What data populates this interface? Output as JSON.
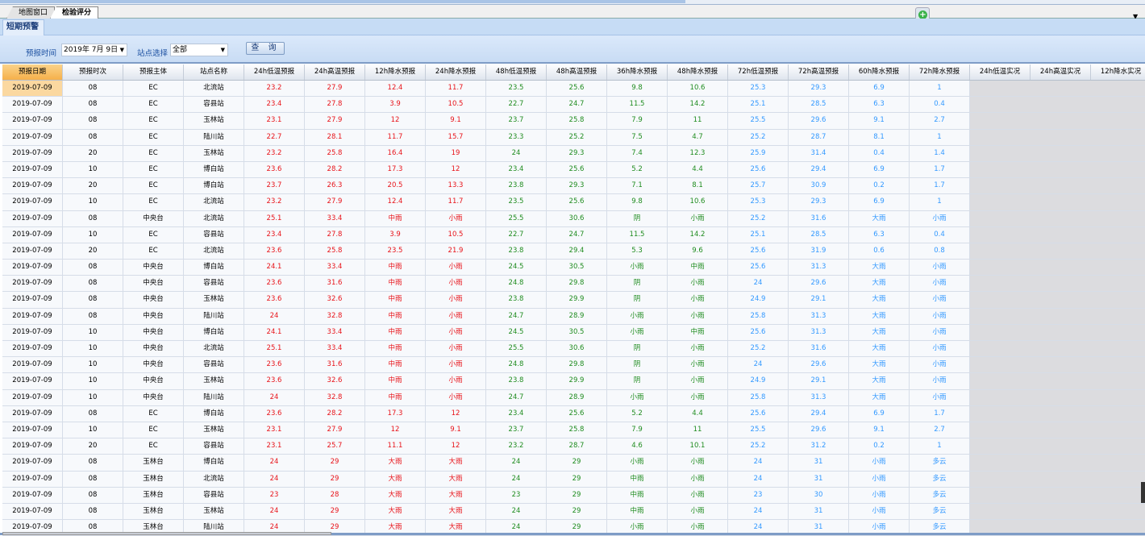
{
  "window_tabs": [
    {
      "label": "地图窗口",
      "active": false
    },
    {
      "label": "检验评分",
      "active": true
    }
  ],
  "add_icon": "plus-circle-icon",
  "sub_tab": "短期预警",
  "filter": {
    "time_label": "预报时间",
    "time_value": "2019年 7月 9日",
    "station_label": "站点选择",
    "station_value": "全部",
    "query_label": "查 询"
  },
  "colors": {
    "group1": "#e8141a",
    "group2": "#1f8c1f",
    "group3": "#3399ff",
    "selected_header": "#f5b04a"
  },
  "columns": [
    "预报日期",
    "预报时次",
    "预报主体",
    "站点名称",
    "24h低温预报",
    "24h高温预报",
    "12h降水预报",
    "24h降水预报",
    "48h低温预报",
    "48h高温预报",
    "36h降水预报",
    "48h降水预报",
    "72h低温预报",
    "72h高温预报",
    "60h降水预报",
    "72h降水预报",
    "24h低温实况",
    "24h高温实况",
    "12h降水实况"
  ],
  "rows": [
    [
      "2019-07-09",
      "08",
      "EC",
      "北流站",
      "23.2",
      "27.9",
      "12.4",
      "11.7",
      "23.5",
      "25.6",
      "9.8",
      "10.6",
      "25.3",
      "29.3",
      "6.9",
      "1",
      "",
      "",
      ""
    ],
    [
      "2019-07-09",
      "08",
      "EC",
      "容县站",
      "23.4",
      "27.8",
      "3.9",
      "10.5",
      "22.7",
      "24.7",
      "11.5",
      "14.2",
      "25.1",
      "28.5",
      "6.3",
      "0.4",
      "",
      "",
      ""
    ],
    [
      "2019-07-09",
      "08",
      "EC",
      "玉林站",
      "23.1",
      "27.9",
      "12",
      "9.1",
      "23.7",
      "25.8",
      "7.9",
      "11",
      "25.5",
      "29.6",
      "9.1",
      "2.7",
      "",
      "",
      ""
    ],
    [
      "2019-07-09",
      "08",
      "EC",
      "陆川站",
      "22.7",
      "28.1",
      "11.7",
      "15.7",
      "23.3",
      "25.2",
      "7.5",
      "4.7",
      "25.2",
      "28.7",
      "8.1",
      "1",
      "",
      "",
      ""
    ],
    [
      "2019-07-09",
      "20",
      "EC",
      "玉林站",
      "23.2",
      "25.8",
      "16.4",
      "19",
      "24",
      "29.3",
      "7.4",
      "12.3",
      "25.9",
      "31.4",
      "0.4",
      "1.4",
      "",
      "",
      ""
    ],
    [
      "2019-07-09",
      "10",
      "EC",
      "博白站",
      "23.6",
      "28.2",
      "17.3",
      "12",
      "23.4",
      "25.6",
      "5.2",
      "4.4",
      "25.6",
      "29.4",
      "6.9",
      "1.7",
      "",
      "",
      ""
    ],
    [
      "2019-07-09",
      "20",
      "EC",
      "博白站",
      "23.7",
      "26.3",
      "20.5",
      "13.3",
      "23.8",
      "29.3",
      "7.1",
      "8.1",
      "25.7",
      "30.9",
      "0.2",
      "1.7",
      "",
      "",
      ""
    ],
    [
      "2019-07-09",
      "10",
      "EC",
      "北流站",
      "23.2",
      "27.9",
      "12.4",
      "11.7",
      "23.5",
      "25.6",
      "9.8",
      "10.6",
      "25.3",
      "29.3",
      "6.9",
      "1",
      "",
      "",
      ""
    ],
    [
      "2019-07-09",
      "08",
      "中央台",
      "北流站",
      "25.1",
      "33.4",
      "中雨",
      "小雨",
      "25.5",
      "30.6",
      "阴",
      "小雨",
      "25.2",
      "31.6",
      "大雨",
      "小雨",
      "",
      "",
      ""
    ],
    [
      "2019-07-09",
      "10",
      "EC",
      "容县站",
      "23.4",
      "27.8",
      "3.9",
      "10.5",
      "22.7",
      "24.7",
      "11.5",
      "14.2",
      "25.1",
      "28.5",
      "6.3",
      "0.4",
      "",
      "",
      ""
    ],
    [
      "2019-07-09",
      "20",
      "EC",
      "北流站",
      "23.6",
      "25.8",
      "23.5",
      "21.9",
      "23.8",
      "29.4",
      "5.3",
      "9.6",
      "25.6",
      "31.9",
      "0.6",
      "0.8",
      "",
      "",
      ""
    ],
    [
      "2019-07-09",
      "08",
      "中央台",
      "博白站",
      "24.1",
      "33.4",
      "中雨",
      "小雨",
      "24.5",
      "30.5",
      "小雨",
      "中雨",
      "25.6",
      "31.3",
      "大雨",
      "小雨",
      "",
      "",
      ""
    ],
    [
      "2019-07-09",
      "08",
      "中央台",
      "容县站",
      "23.6",
      "31.6",
      "中雨",
      "小雨",
      "24.8",
      "29.8",
      "阴",
      "小雨",
      "24",
      "29.6",
      "大雨",
      "小雨",
      "",
      "",
      ""
    ],
    [
      "2019-07-09",
      "08",
      "中央台",
      "玉林站",
      "23.6",
      "32.6",
      "中雨",
      "小雨",
      "23.8",
      "29.9",
      "阴",
      "小雨",
      "24.9",
      "29.1",
      "大雨",
      "小雨",
      "",
      "",
      ""
    ],
    [
      "2019-07-09",
      "08",
      "中央台",
      "陆川站",
      "24",
      "32.8",
      "中雨",
      "小雨",
      "24.7",
      "28.9",
      "小雨",
      "小雨",
      "25.8",
      "31.3",
      "大雨",
      "小雨",
      "",
      "",
      ""
    ],
    [
      "2019-07-09",
      "10",
      "中央台",
      "博白站",
      "24.1",
      "33.4",
      "中雨",
      "小雨",
      "24.5",
      "30.5",
      "小雨",
      "中雨",
      "25.6",
      "31.3",
      "大雨",
      "小雨",
      "",
      "",
      ""
    ],
    [
      "2019-07-09",
      "10",
      "中央台",
      "北流站",
      "25.1",
      "33.4",
      "中雨",
      "小雨",
      "25.5",
      "30.6",
      "阴",
      "小雨",
      "25.2",
      "31.6",
      "大雨",
      "小雨",
      "",
      "",
      ""
    ],
    [
      "2019-07-09",
      "10",
      "中央台",
      "容县站",
      "23.6",
      "31.6",
      "中雨",
      "小雨",
      "24.8",
      "29.8",
      "阴",
      "小雨",
      "24",
      "29.6",
      "大雨",
      "小雨",
      "",
      "",
      ""
    ],
    [
      "2019-07-09",
      "10",
      "中央台",
      "玉林站",
      "23.6",
      "32.6",
      "中雨",
      "小雨",
      "23.8",
      "29.9",
      "阴",
      "小雨",
      "24.9",
      "29.1",
      "大雨",
      "小雨",
      "",
      "",
      ""
    ],
    [
      "2019-07-09",
      "10",
      "中央台",
      "陆川站",
      "24",
      "32.8",
      "中雨",
      "小雨",
      "24.7",
      "28.9",
      "小雨",
      "小雨",
      "25.8",
      "31.3",
      "大雨",
      "小雨",
      "",
      "",
      ""
    ],
    [
      "2019-07-09",
      "08",
      "EC",
      "博白站",
      "23.6",
      "28.2",
      "17.3",
      "12",
      "23.4",
      "25.6",
      "5.2",
      "4.4",
      "25.6",
      "29.4",
      "6.9",
      "1.7",
      "",
      "",
      ""
    ],
    [
      "2019-07-09",
      "10",
      "EC",
      "玉林站",
      "23.1",
      "27.9",
      "12",
      "9.1",
      "23.7",
      "25.8",
      "7.9",
      "11",
      "25.5",
      "29.6",
      "9.1",
      "2.7",
      "",
      "",
      ""
    ],
    [
      "2019-07-09",
      "20",
      "EC",
      "容县站",
      "23.1",
      "25.7",
      "11.1",
      "12",
      "23.2",
      "28.7",
      "4.6",
      "10.1",
      "25.2",
      "31.2",
      "0.2",
      "1",
      "",
      "",
      ""
    ],
    [
      "2019-07-09",
      "08",
      "玉林台",
      "博白站",
      "24",
      "29",
      "大雨",
      "大雨",
      "24",
      "29",
      "小雨",
      "小雨",
      "24",
      "31",
      "小雨",
      "多云",
      "",
      "",
      ""
    ],
    [
      "2019-07-09",
      "08",
      "玉林台",
      "北流站",
      "24",
      "29",
      "大雨",
      "大雨",
      "24",
      "29",
      "中雨",
      "小雨",
      "24",
      "31",
      "小雨",
      "多云",
      "",
      "",
      ""
    ],
    [
      "2019-07-09",
      "08",
      "玉林台",
      "容县站",
      "23",
      "28",
      "大雨",
      "大雨",
      "23",
      "29",
      "中雨",
      "小雨",
      "23",
      "30",
      "小雨",
      "多云",
      "",
      "",
      ""
    ],
    [
      "2019-07-09",
      "08",
      "玉林台",
      "玉林站",
      "24",
      "29",
      "大雨",
      "大雨",
      "24",
      "29",
      "中雨",
      "小雨",
      "24",
      "31",
      "小雨",
      "多云",
      "",
      "",
      ""
    ],
    [
      "2019-07-09",
      "08",
      "玉林台",
      "陆川站",
      "24",
      "29",
      "大雨",
      "大雨",
      "24",
      "29",
      "小雨",
      "小雨",
      "24",
      "31",
      "小雨",
      "多云",
      "",
      "",
      ""
    ]
  ]
}
